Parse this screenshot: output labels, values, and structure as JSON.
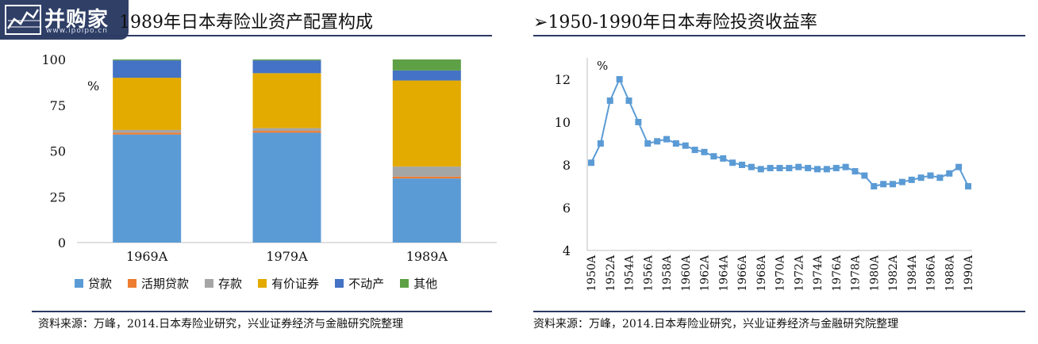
{
  "logo": {
    "brand": "并购家",
    "url": "www.ipoipo.cn"
  },
  "titles": {
    "left": "1989年日本寿险业资产配置构成",
    "right_marker": "➢",
    "right": "1950-1990年日本寿险投资收益率"
  },
  "sources": {
    "left": "资料来源：万峰，2014.日本寿险业研究，兴业证券经济与金融研究院整理",
    "right": "资料来源：万峰，2014.日本寿险业研究，兴业证券经济与金融研究院整理"
  },
  "chart_data": [
    {
      "type": "bar",
      "stacked": true,
      "categories": [
        "1969A",
        "1979A",
        "1989A"
      ],
      "ylabel": "%",
      "ylim": [
        0,
        100
      ],
      "yticks": [
        0,
        25,
        50,
        75,
        100
      ],
      "legend_position": "bottom",
      "series": [
        {
          "name": "贷款",
          "color": "#5b9bd5",
          "values": [
            59,
            60,
            35
          ]
        },
        {
          "name": "活期贷款",
          "color": "#ed7d31",
          "values": [
            1,
            1,
            1
          ]
        },
        {
          "name": "存款",
          "color": "#a5a5a5",
          "values": [
            1.5,
            1.5,
            5.5
          ]
        },
        {
          "name": "有价证券",
          "color": "#e3aa00",
          "values": [
            28.5,
            30,
            47
          ]
        },
        {
          "name": "不动产",
          "color": "#4472c4",
          "values": [
            9.5,
            7,
            5.5
          ]
        },
        {
          "name": "其他",
          "color": "#5ea045",
          "values": [
            0.5,
            0.5,
            6
          ]
        }
      ]
    },
    {
      "type": "line",
      "ylabel": "%",
      "ylim": [
        4,
        13
      ],
      "yticks": [
        4,
        6,
        8,
        10,
        12
      ],
      "x_tick_labels": [
        "1950A",
        "1952A",
        "1954A",
        "1956A",
        "1958A",
        "1960A",
        "1962A",
        "1964A",
        "1966A",
        "1968A",
        "1970A",
        "1972A",
        "1974A",
        "1976A",
        "1978A",
        "1980A",
        "1982A",
        "1984A",
        "1986A",
        "1988A",
        "1990A"
      ],
      "x": [
        1950,
        1951,
        1952,
        1953,
        1954,
        1955,
        1956,
        1957,
        1958,
        1959,
        1960,
        1961,
        1962,
        1963,
        1964,
        1965,
        1966,
        1967,
        1968,
        1969,
        1970,
        1971,
        1972,
        1973,
        1974,
        1975,
        1976,
        1977,
        1978,
        1979,
        1980,
        1981,
        1982,
        1983,
        1984,
        1985,
        1986,
        1987,
        1988,
        1989,
        1990
      ],
      "series": [
        {
          "color": "#5b9bd5",
          "values": [
            8.1,
            9.0,
            11.0,
            12.0,
            11.0,
            10.0,
            9.0,
            9.1,
            9.2,
            9.0,
            8.9,
            8.7,
            8.6,
            8.4,
            8.3,
            8.1,
            8.0,
            7.9,
            7.8,
            7.85,
            7.85,
            7.85,
            7.9,
            7.85,
            7.8,
            7.8,
            7.85,
            7.9,
            7.7,
            7.5,
            7.0,
            7.1,
            7.1,
            7.2,
            7.3,
            7.4,
            7.5,
            7.4,
            7.6,
            7.9,
            7.0
          ]
        }
      ]
    }
  ]
}
